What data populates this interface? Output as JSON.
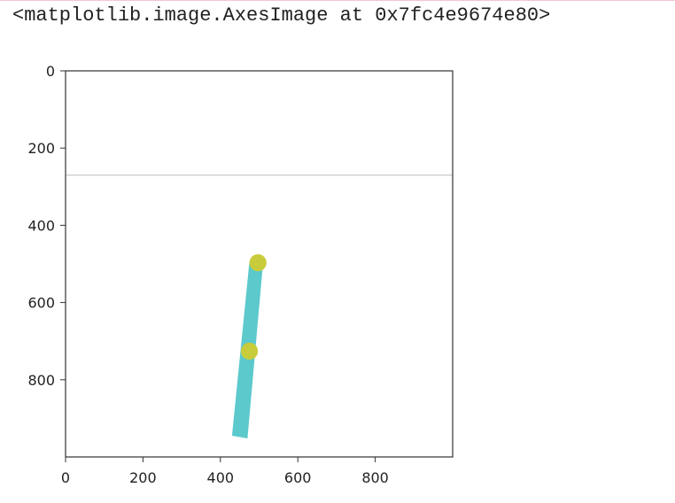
{
  "output": {
    "repr_text": "<matplotlib.image.AxesImage at 0x7fc4e9674e80>"
  },
  "chart_data": {
    "type": "image",
    "title": "",
    "xlabel": "",
    "ylabel": "",
    "xlim": [
      0,
      1000
    ],
    "ylim": [
      1000,
      0
    ],
    "x_ticks": [
      0,
      200,
      400,
      600,
      800
    ],
    "y_ticks": [
      0,
      200,
      400,
      600,
      800
    ],
    "x_tick_labels": [
      "0",
      "200",
      "400",
      "600",
      "800"
    ],
    "y_tick_labels": [
      "0",
      "200",
      "400",
      "600",
      "800"
    ],
    "horizon_y": 270,
    "rod": {
      "color": "#5cc9cc",
      "polygon": [
        [
          430,
          945
        ],
        [
          470,
          952
        ],
        [
          510,
          500
        ],
        [
          475,
          494
        ]
      ]
    },
    "points": [
      {
        "x": 497,
        "y": 497,
        "r": 22,
        "color": "#c9cc3a"
      },
      {
        "x": 475,
        "y": 726,
        "r": 22,
        "color": "#c9cc3a"
      }
    ],
    "horizon_color": "#d0d0d0",
    "axes_color": "#333333"
  }
}
